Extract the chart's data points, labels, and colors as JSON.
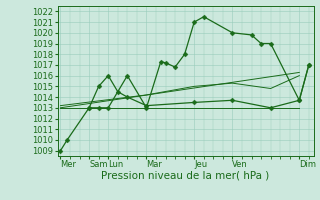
{
  "bg_color": "#cce8dd",
  "grid_color": "#99ccbb",
  "line_color": "#1a6b1a",
  "marker_color": "#1a6b1a",
  "xlabel": "Pression niveau de la mer( hPa )",
  "xlabel_fontsize": 7.5,
  "tick_fontsize": 6,
  "ylim": [
    1008.5,
    1022.5
  ],
  "yticks": [
    1009,
    1010,
    1011,
    1012,
    1013,
    1014,
    1015,
    1016,
    1017,
    1018,
    1019,
    1020,
    1021,
    1022
  ],
  "xtick_labels": [
    "Mer",
    "Sam",
    "Lun",
    "Mar",
    "Jeu",
    "Ven",
    "Dim"
  ],
  "xtick_positions": [
    0,
    3,
    5,
    9,
    14,
    18,
    25
  ],
  "xlim": [
    -0.3,
    26.5
  ],
  "line1_x": [
    0,
    0.7,
    3,
    4,
    5,
    7,
    9,
    10.5,
    11,
    12,
    13,
    14,
    15,
    18,
    20,
    21,
    22,
    25,
    26
  ],
  "line1_y": [
    1009,
    1010,
    1013,
    1013,
    1013,
    1016,
    1013,
    1017.3,
    1017.2,
    1016.8,
    1018,
    1021,
    1021.5,
    1020,
    1019.8,
    1019,
    1019,
    1013.7,
    1017
  ],
  "line2_x": [
    3,
    4,
    5,
    6,
    7,
    9,
    14,
    18,
    22,
    25,
    26
  ],
  "line2_y": [
    1013,
    1015,
    1016,
    1014.5,
    1014,
    1013.2,
    1013.5,
    1013.7,
    1013,
    1013.7,
    1017
  ],
  "trend1_x": [
    0,
    25
  ],
  "trend1_y": [
    1013.0,
    1016.3
  ],
  "trend2_x": [
    0,
    25
  ],
  "trend2_y": [
    1013.0,
    1013.0
  ],
  "trend3_x": [
    0,
    9,
    14,
    18,
    22,
    25
  ],
  "trend3_y": [
    1013.2,
    1014.2,
    1015.0,
    1015.3,
    1014.8,
    1016.0
  ]
}
